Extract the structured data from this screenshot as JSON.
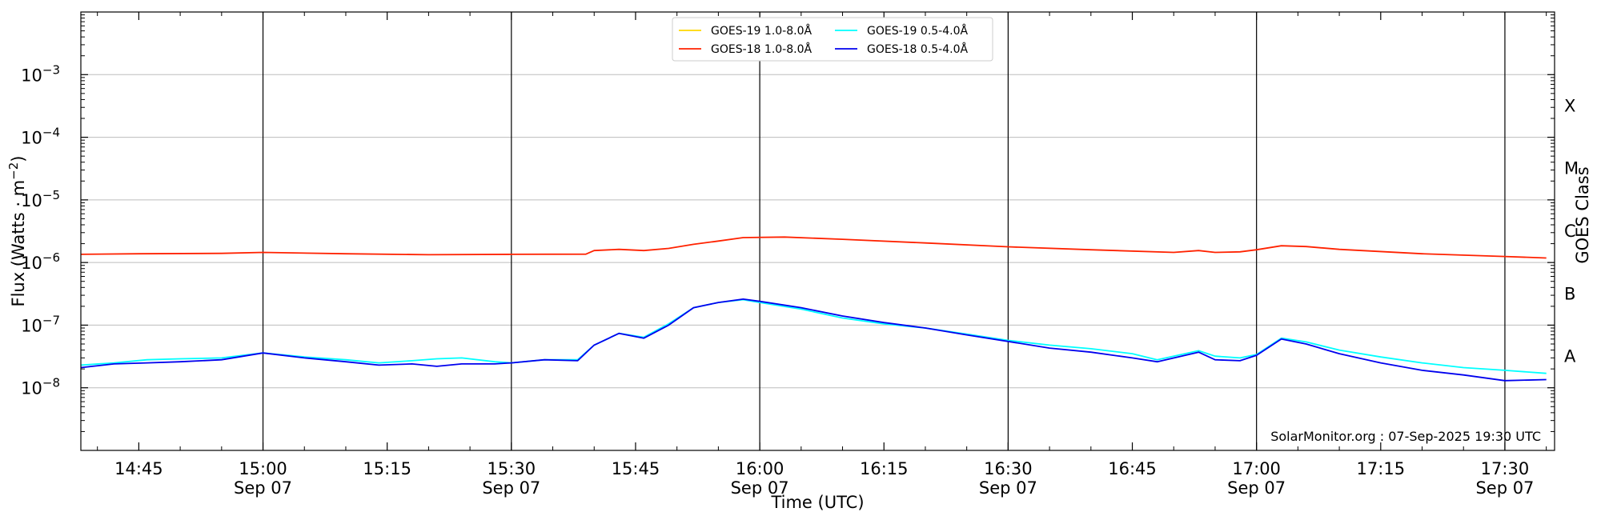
{
  "chart_data": {
    "type": "line",
    "xlabel": "Time (UTC)",
    "ylabel": "Flux (Watts · m",
    "ylabel_sup": "−2",
    "ylabel_close": ")",
    "right_label": "GOES Class",
    "credit": "SolarMonitor.org : 07-Sep-2025 19:30 UTC",
    "x_range": [
      "14:38",
      "17:36"
    ],
    "ylim": [
      1e-09,
      0.01
    ],
    "y_scale": "log",
    "y_ticks": [
      {
        "value": 1e-08,
        "base": "10",
        "exp": "−8"
      },
      {
        "value": 1e-07,
        "base": "10",
        "exp": "−7"
      },
      {
        "value": 1e-06,
        "base": "10",
        "exp": "−6"
      },
      {
        "value": 1e-05,
        "base": "10",
        "exp": "−5"
      },
      {
        "value": 0.0001,
        "base": "10",
        "exp": "−4"
      },
      {
        "value": 0.001,
        "base": "10",
        "exp": "−3"
      }
    ],
    "x_ticks": [
      {
        "time": "14:45",
        "label": "14:45",
        "sub": ""
      },
      {
        "time": "15:00",
        "label": "15:00",
        "sub": "Sep 07"
      },
      {
        "time": "15:15",
        "label": "15:15",
        "sub": ""
      },
      {
        "time": "15:30",
        "label": "15:30",
        "sub": "Sep 07"
      },
      {
        "time": "15:45",
        "label": "15:45",
        "sub": ""
      },
      {
        "time": "16:00",
        "label": "16:00",
        "sub": "Sep 07"
      },
      {
        "time": "16:15",
        "label": "16:15",
        "sub": ""
      },
      {
        "time": "16:30",
        "label": "16:30",
        "sub": "Sep 07"
      },
      {
        "time": "16:45",
        "label": "16:45",
        "sub": ""
      },
      {
        "time": "17:00",
        "label": "17:00",
        "sub": "Sep 07"
      },
      {
        "time": "17:15",
        "label": "17:15",
        "sub": ""
      },
      {
        "time": "17:30",
        "label": "17:30",
        "sub": "Sep 07"
      }
    ],
    "vlines": [
      "15:00",
      "15:30",
      "16:00",
      "16:30",
      "17:00",
      "17:30"
    ],
    "goes_classes": [
      {
        "label": "A",
        "value": 3.16e-08
      },
      {
        "label": "B",
        "value": 3.16e-07
      },
      {
        "label": "C",
        "value": 3.16e-06
      },
      {
        "label": "M",
        "value": 3.16e-05
      },
      {
        "label": "X",
        "value": 0.000316
      }
    ],
    "legend_location": "upper center",
    "series": [
      {
        "name": "GOES-19 1.0-8.0Å",
        "color": "#ffd700",
        "points": []
      },
      {
        "name": "GOES-18 1.0-8.0Å",
        "color": "#ff2200",
        "points": [
          [
            "14:38",
            1.35e-06
          ],
          [
            "14:45",
            1.38e-06
          ],
          [
            "14:55",
            1.4e-06
          ],
          [
            "15:00",
            1.45e-06
          ],
          [
            "15:10",
            1.38e-06
          ],
          [
            "15:20",
            1.33e-06
          ],
          [
            "15:30",
            1.35e-06
          ],
          [
            "15:39",
            1.36e-06
          ],
          [
            "15:40",
            1.55e-06
          ],
          [
            "15:43",
            1.62e-06
          ],
          [
            "15:46",
            1.55e-06
          ],
          [
            "15:49",
            1.68e-06
          ],
          [
            "15:52",
            1.95e-06
          ],
          [
            "15:55",
            2.2e-06
          ],
          [
            "15:58",
            2.5e-06
          ],
          [
            "16:03",
            2.55e-06
          ],
          [
            "16:10",
            2.35e-06
          ],
          [
            "16:20",
            2.05e-06
          ],
          [
            "16:30",
            1.78e-06
          ],
          [
            "16:40",
            1.6e-06
          ],
          [
            "16:50",
            1.45e-06
          ],
          [
            "16:53",
            1.55e-06
          ],
          [
            "16:55",
            1.45e-06
          ],
          [
            "16:58",
            1.48e-06
          ],
          [
            "17:00",
            1.6e-06
          ],
          [
            "17:03",
            1.85e-06
          ],
          [
            "17:06",
            1.8e-06
          ],
          [
            "17:10",
            1.62e-06
          ],
          [
            "17:20",
            1.38e-06
          ],
          [
            "17:30",
            1.25e-06
          ],
          [
            "17:35",
            1.18e-06
          ]
        ]
      },
      {
        "name": "GOES-19 0.5-4.0Å",
        "color": "#00ffff",
        "points": [
          [
            "14:38",
            2.3e-08
          ],
          [
            "14:42",
            2.5e-08
          ],
          [
            "14:46",
            2.8e-08
          ],
          [
            "14:50",
            2.9e-08
          ],
          [
            "14:55",
            3e-08
          ],
          [
            "15:00",
            3.6e-08
          ],
          [
            "15:05",
            3.1e-08
          ],
          [
            "15:10",
            2.8e-08
          ],
          [
            "15:14",
            2.5e-08
          ],
          [
            "15:18",
            2.7e-08
          ],
          [
            "15:21",
            2.9e-08
          ],
          [
            "15:24",
            3e-08
          ],
          [
            "15:28",
            2.6e-08
          ],
          [
            "15:30",
            2.5e-08
          ],
          [
            "15:34",
            2.8e-08
          ],
          [
            "15:38",
            2.8e-08
          ],
          [
            "15:40",
            4.8e-08
          ],
          [
            "15:43",
            7.4e-08
          ],
          [
            "15:46",
            6.4e-08
          ],
          [
            "15:49",
            1.05e-07
          ],
          [
            "15:52",
            1.9e-07
          ],
          [
            "15:55",
            2.3e-07
          ],
          [
            "15:58",
            2.55e-07
          ],
          [
            "16:00",
            2.3e-07
          ],
          [
            "16:05",
            1.8e-07
          ],
          [
            "16:10",
            1.3e-07
          ],
          [
            "16:15",
            1.05e-07
          ],
          [
            "16:20",
            9e-08
          ],
          [
            "16:25",
            7.2e-08
          ],
          [
            "16:30",
            5.7e-08
          ],
          [
            "16:35",
            4.8e-08
          ],
          [
            "16:40",
            4.2e-08
          ],
          [
            "16:45",
            3.5e-08
          ],
          [
            "16:48",
            2.8e-08
          ],
          [
            "16:53",
            3.9e-08
          ],
          [
            "16:55",
            3.2e-08
          ],
          [
            "16:58",
            3e-08
          ],
          [
            "17:00",
            3.4e-08
          ],
          [
            "17:03",
            6.2e-08
          ],
          [
            "17:06",
            5.4e-08
          ],
          [
            "17:10",
            4e-08
          ],
          [
            "17:15",
            3.1e-08
          ],
          [
            "17:20",
            2.5e-08
          ],
          [
            "17:25",
            2.1e-08
          ],
          [
            "17:30",
            1.9e-08
          ],
          [
            "17:35",
            1.7e-08
          ]
        ]
      },
      {
        "name": "GOES-18 0.5-4.0Å",
        "color": "#0000ee",
        "points": [
          [
            "14:38",
            2.1e-08
          ],
          [
            "14:42",
            2.4e-08
          ],
          [
            "14:46",
            2.5e-08
          ],
          [
            "14:50",
            2.6e-08
          ],
          [
            "14:55",
            2.8e-08
          ],
          [
            "15:00",
            3.6e-08
          ],
          [
            "15:05",
            3e-08
          ],
          [
            "15:10",
            2.6e-08
          ],
          [
            "15:14",
            2.3e-08
          ],
          [
            "15:18",
            2.4e-08
          ],
          [
            "15:21",
            2.2e-08
          ],
          [
            "15:24",
            2.4e-08
          ],
          [
            "15:28",
            2.4e-08
          ],
          [
            "15:30",
            2.5e-08
          ],
          [
            "15:34",
            2.8e-08
          ],
          [
            "15:38",
            2.7e-08
          ],
          [
            "15:40",
            4.8e-08
          ],
          [
            "15:43",
            7.4e-08
          ],
          [
            "15:46",
            6.2e-08
          ],
          [
            "15:49",
            1e-07
          ],
          [
            "15:52",
            1.9e-07
          ],
          [
            "15:55",
            2.3e-07
          ],
          [
            "15:58",
            2.6e-07
          ],
          [
            "16:00",
            2.4e-07
          ],
          [
            "16:05",
            1.9e-07
          ],
          [
            "16:10",
            1.4e-07
          ],
          [
            "16:15",
            1.1e-07
          ],
          [
            "16:20",
            9e-08
          ],
          [
            "16:25",
            7e-08
          ],
          [
            "16:30",
            5.5e-08
          ],
          [
            "16:35",
            4.3e-08
          ],
          [
            "16:40",
            3.7e-08
          ],
          [
            "16:45",
            3e-08
          ],
          [
            "16:48",
            2.6e-08
          ],
          [
            "16:53",
            3.7e-08
          ],
          [
            "16:55",
            2.8e-08
          ],
          [
            "16:58",
            2.7e-08
          ],
          [
            "17:00",
            3.3e-08
          ],
          [
            "17:03",
            6e-08
          ],
          [
            "17:06",
            5e-08
          ],
          [
            "17:10",
            3.5e-08
          ],
          [
            "17:15",
            2.5e-08
          ],
          [
            "17:20",
            1.9e-08
          ],
          [
            "17:25",
            1.6e-08
          ],
          [
            "17:30",
            1.3e-08
          ],
          [
            "17:35",
            1.35e-08
          ]
        ]
      }
    ]
  }
}
